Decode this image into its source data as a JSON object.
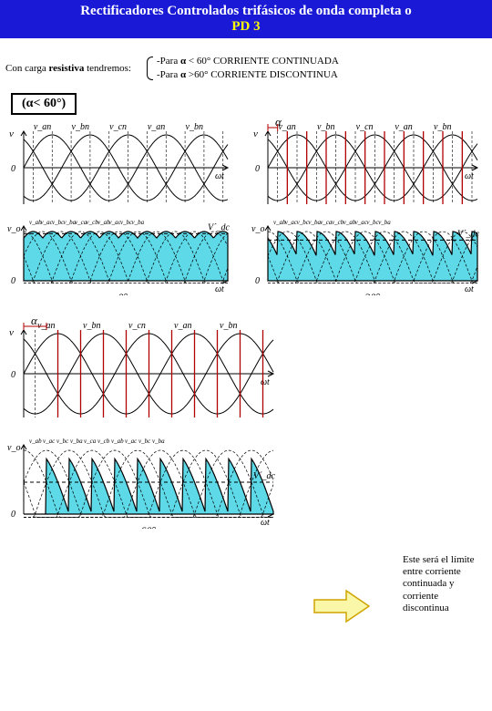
{
  "title": {
    "line1": "Rectificadores Controlados trifásicos de onda completa o",
    "line2": "PD 3",
    "bg": "#1a1ad6",
    "line1_color": "#ffffff",
    "line2_color": "#ffff00"
  },
  "intro": {
    "left": "Con carga ",
    "left_bold": "resistiva",
    "left_tail": " tendremos:",
    "cond1_pre": "-Para ",
    "cond1_sym": "α",
    "cond1_rel": " < 60°",
    "cond1_text": "   CORRIENTE CONTINUADA",
    "cond2_pre": "-Para ",
    "cond2_sym": "α",
    "cond2_rel": " >60°",
    "cond2_text": "   CORRIENTE DISCONTINUA"
  },
  "cond_box": "(α< 60°)",
  "charts": {
    "phase_colors": [
      "#000000"
    ],
    "fill_color": "#5dd9e8",
    "alpha_line_color": "#b00000",
    "axis_color": "#000000",
    "grid_dash": "3,2",
    "phase_labels": [
      "v_an",
      "v_bn",
      "v_cn",
      "v_an",
      "v_bn"
    ],
    "line_labels": [
      "v_ab",
      "v_ac",
      "v_bc",
      "v_ba",
      "v_ca",
      "v_cb",
      "v_ab",
      "v_ac",
      "v_bc",
      "v_ba"
    ],
    "vdc_label": "V´_dc",
    "y_label_v": "v",
    "y_label_vo": "v_o",
    "x_label": "ωt",
    "zero": "0",
    "p1": {
      "alpha_deg": 0,
      "caption": "α=0°"
    },
    "p2": {
      "alpha_deg": 30,
      "caption": "α=30°",
      "header": "α"
    },
    "p3": {
      "alpha_deg": 60,
      "caption": "α=60°",
      "header": "α"
    }
  },
  "note": {
    "text": "Este será el límite entre corriente continuada y corriente discontinua"
  },
  "arrow": {
    "fill": "#faf7a8",
    "stroke": "#cfa400"
  }
}
